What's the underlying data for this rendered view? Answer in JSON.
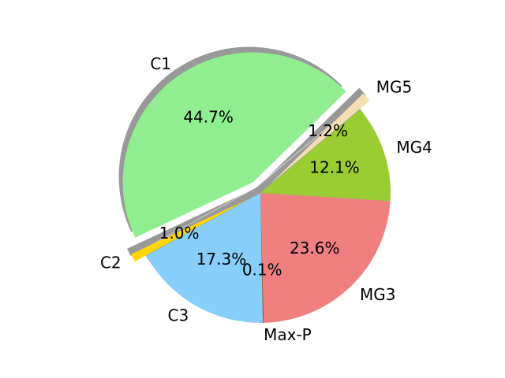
{
  "chart_data": {
    "type": "pie",
    "title": "",
    "labels": [
      "MG5",
      "C1",
      "C2",
      "C3",
      "Max-P",
      "MG3",
      "MG4"
    ],
    "values": [
      1.2,
      44.7,
      1.0,
      17.3,
      0.1,
      23.6,
      12.1
    ],
    "value_labels": [
      "1.2%",
      "44.7%",
      "1.0%",
      "17.3%",
      "0.1%",
      "23.6%",
      "12.1%"
    ],
    "colors": [
      "#F5DEB3",
      "#90EE90",
      "#FFD700",
      "#87CEFA",
      "#8B4513",
      "#F08080",
      "#9ACD32"
    ],
    "explode": [
      0.1,
      0.1,
      0.1,
      0,
      0,
      0,
      0
    ],
    "start_angle_deg": 40,
    "direction": "counterclockwise",
    "shadow": true
  }
}
